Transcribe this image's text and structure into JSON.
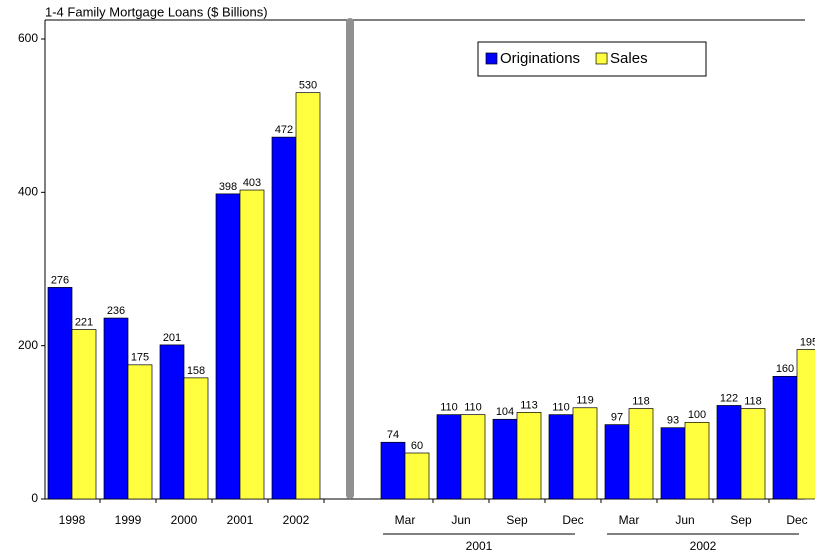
{
  "chart_data": {
    "type": "bar",
    "title": "1-4 Family Mortgage Loans ($ Billions)",
    "categories": [
      "1998",
      "1999",
      "2000",
      "2001",
      "2002",
      "Mar",
      "Jun",
      "Sep",
      "Dec",
      "Mar",
      "Jun",
      "Sep",
      "Dec"
    ],
    "groups": [
      "2001",
      "2002"
    ],
    "series": [
      {
        "name": "Originations",
        "color": "#0000ff",
        "values": [
          276,
          236,
          201,
          398,
          472,
          74,
          110,
          104,
          110,
          97,
          93,
          122,
          160
        ]
      },
      {
        "name": "Sales",
        "color": "#ffff40",
        "values": [
          221,
          175,
          158,
          403,
          530,
          60,
          110,
          113,
          119,
          118,
          100,
          118,
          195
        ]
      }
    ],
    "ylim": [
      0,
      600
    ],
    "yticks": [
      0,
      200,
      400,
      600
    ],
    "legend": "top-right"
  }
}
